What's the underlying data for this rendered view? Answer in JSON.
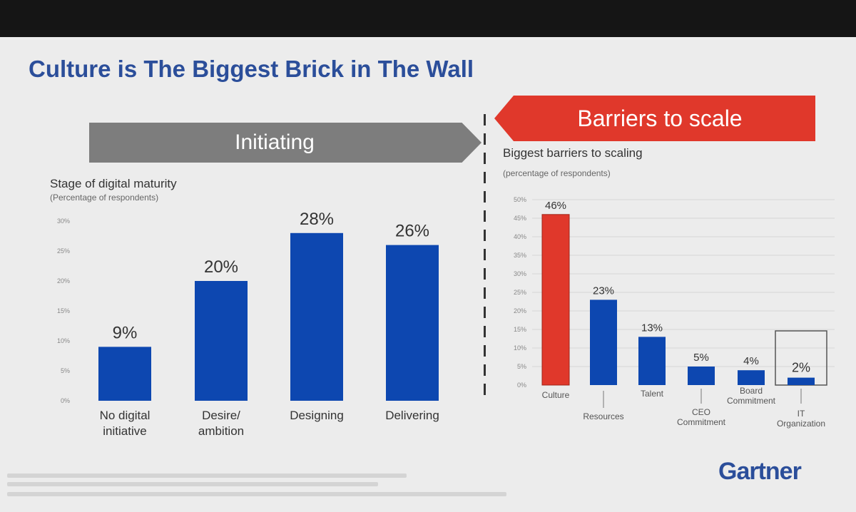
{
  "slide": {
    "title": "Culture is The Biggest Brick in The Wall",
    "left_banner": "Initiating",
    "right_banner": "Barriers to scale",
    "logo": "Gartner"
  },
  "colors": {
    "bar": "#0d47b0",
    "highlight": "#e0382b",
    "title": "#2b4e9a"
  },
  "chart_data": [
    {
      "type": "bar",
      "title": "Stage of digital maturity",
      "subtitle": "(Percentage of respondents)",
      "categories": [
        [
          "No digital",
          "initiative"
        ],
        [
          "Desire/",
          "ambition"
        ],
        [
          "Designing"
        ],
        [
          "Delivering"
        ]
      ],
      "values": [
        9,
        20,
        28,
        26
      ],
      "data_labels": [
        "9%",
        "20%",
        "28%",
        "26%"
      ],
      "y_ticks": [
        "0%",
        "5%",
        "10%",
        "15%",
        "20%",
        "25%",
        "30%"
      ],
      "ylim": [
        0,
        30
      ],
      "grid": false
    },
    {
      "type": "bar",
      "title": "Biggest barriers to scaling",
      "subtitle": "(percentage of respondents)",
      "categories": [
        [
          "Culture"
        ],
        [
          "Resources"
        ],
        [
          "Talent"
        ],
        [
          "CEO",
          "Commitment"
        ],
        [
          "Board",
          "Commitment"
        ],
        [
          "IT",
          "Organization"
        ]
      ],
      "values": [
        46,
        23,
        13,
        5,
        4,
        2
      ],
      "data_labels": [
        "46%",
        "23%",
        "13%",
        "5%",
        "4%",
        "2%"
      ],
      "y_ticks": [
        "0%",
        "5%",
        "10%",
        "15%",
        "20%",
        "25%",
        "30%",
        "35%",
        "40%",
        "45%",
        "50%"
      ],
      "ylim": [
        0,
        50
      ],
      "grid": true,
      "highlight_index": 0,
      "boxed_index": 5
    }
  ]
}
